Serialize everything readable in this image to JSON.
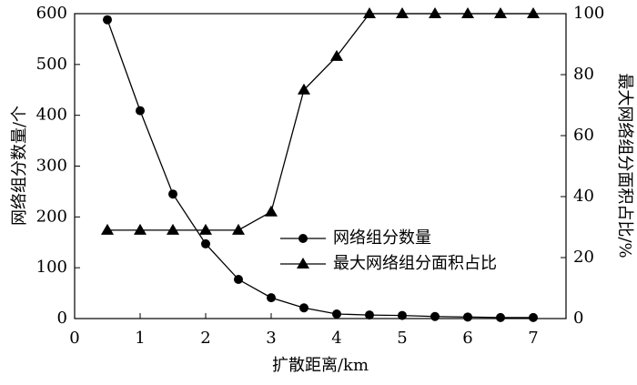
{
  "chart_data": {
    "type": "line",
    "x_label": "扩散距离/km",
    "y_label": "网络组分数量/个",
    "y2_label": "最大网络组分面积占比/%",
    "x": [
      0.5,
      1,
      1.5,
      2,
      2.5,
      3,
      3.5,
      4,
      4.5,
      5,
      5.5,
      6,
      6.5,
      7
    ],
    "series": [
      {
        "name": "网络组分数量",
        "color": "#000000",
        "marker": "circle",
        "axis": "y",
        "values": [
          588,
          409,
          245,
          147,
          77,
          41,
          21,
          9,
          7,
          6,
          4,
          3,
          2,
          2
        ]
      },
      {
        "name": "最大网络组分面积占比",
        "color": "#000000",
        "marker": "triangle",
        "axis": "y2",
        "values": [
          29,
          29,
          29,
          29,
          29,
          35,
          75,
          86,
          100,
          100,
          100,
          100,
          100,
          100
        ]
      }
    ],
    "xlim": [
      0,
      7.5
    ],
    "xticks": [
      0,
      1,
      2,
      3,
      4,
      5,
      6,
      7
    ],
    "ylim": [
      0,
      600
    ],
    "yticks": [
      0,
      100,
      200,
      300,
      400,
      500,
      600
    ],
    "y2lim": [
      0,
      100
    ],
    "y2ticks": [
      0,
      20,
      40,
      60,
      80,
      100
    ],
    "legend": "center",
    "grid": false
  }
}
